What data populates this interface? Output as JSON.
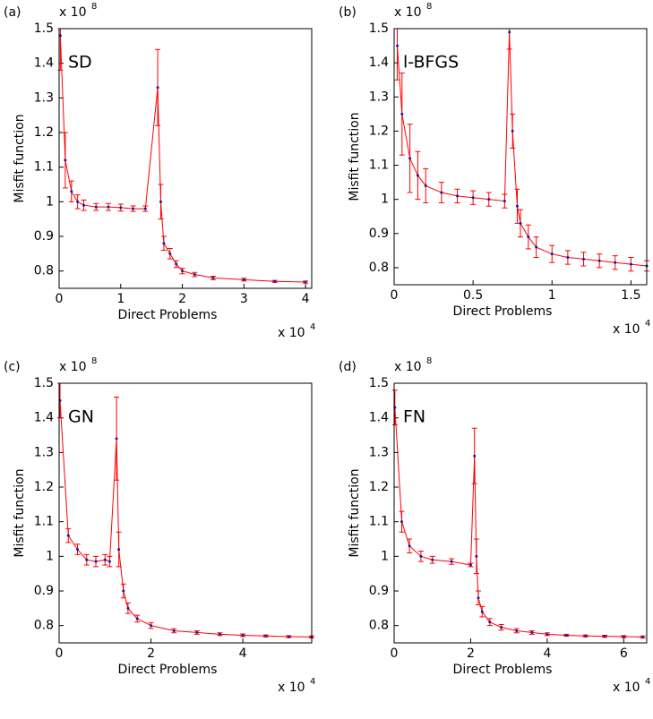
{
  "chart_data": [
    {
      "type": "line",
      "panel": "(a)",
      "label": "SD",
      "xlabel": "Direct Problems",
      "ylabel": "Misfit function",
      "y_multiplier": "x 10",
      "y_exponent": "8",
      "x_multiplier": "x 10",
      "x_exponent": "4",
      "xlim": [
        0,
        4.1
      ],
      "xticks": [
        0,
        1,
        2,
        3,
        4
      ],
      "ylim": [
        0.75,
        1.5
      ],
      "yticks": [
        0.8,
        0.9,
        1,
        1.1,
        1.2,
        1.3,
        1.4,
        1.5
      ],
      "series": [
        {
          "color": "#ff0000",
          "marker_color": "#1a1aa6",
          "x": [
            0.02,
            0.1,
            0.2,
            0.3,
            0.4,
            0.6,
            0.8,
            1.0,
            1.2,
            1.4,
            1.6,
            1.65,
            1.7,
            1.8,
            1.9,
            2.0,
            2.2,
            2.5,
            3.0,
            3.5,
            4.0
          ],
          "values": [
            1.48,
            1.12,
            1.03,
            1.0,
            0.99,
            0.985,
            0.985,
            0.983,
            0.98,
            0.98,
            1.33,
            1.0,
            0.88,
            0.85,
            0.82,
            0.8,
            0.79,
            0.78,
            0.775,
            0.77,
            0.768
          ],
          "errors": [
            0.1,
            0.08,
            0.03,
            0.02,
            0.015,
            0.01,
            0.01,
            0.01,
            0.008,
            0.008,
            0.11,
            0.05,
            0.02,
            0.015,
            0.01,
            0.008,
            0.006,
            0.005,
            0.004,
            0.003,
            0.003
          ]
        }
      ]
    },
    {
      "type": "line",
      "panel": "(b)",
      "label": "l-BFGS",
      "xlabel": "Direct Problems",
      "ylabel": "Misfit function",
      "y_multiplier": "x 10",
      "y_exponent": "8",
      "x_multiplier": "x 10",
      "x_exponent": "4",
      "xlim": [
        0,
        1.6
      ],
      "xticks": [
        0,
        0.5,
        1,
        1.5
      ],
      "ylim": [
        0.75,
        1.5
      ],
      "yticks": [
        0.8,
        0.9,
        1,
        1.1,
        1.2,
        1.3,
        1.4,
        1.5
      ],
      "series": [
        {
          "color": "#ff0000",
          "marker_color": "#1a1aa6",
          "x": [
            0.02,
            0.05,
            0.1,
            0.15,
            0.2,
            0.3,
            0.4,
            0.5,
            0.6,
            0.7,
            0.73,
            0.75,
            0.78,
            0.8,
            0.85,
            0.9,
            1.0,
            1.1,
            1.2,
            1.3,
            1.4,
            1.5,
            1.6
          ],
          "values": [
            1.45,
            1.25,
            1.12,
            1.07,
            1.04,
            1.02,
            1.01,
            1.005,
            1.0,
            0.995,
            1.49,
            1.2,
            0.98,
            0.93,
            0.89,
            0.86,
            0.84,
            0.83,
            0.825,
            0.82,
            0.815,
            0.81,
            0.805
          ],
          "errors": [
            0.1,
            0.12,
            0.1,
            0.07,
            0.05,
            0.03,
            0.02,
            0.02,
            0.02,
            0.02,
            0.05,
            0.05,
            0.05,
            0.04,
            0.035,
            0.03,
            0.025,
            0.02,
            0.02,
            0.02,
            0.02,
            0.02,
            0.015
          ]
        }
      ]
    },
    {
      "type": "line",
      "panel": "(c)",
      "label": "GN",
      "xlabel": "Direct Problems",
      "ylabel": "Misfit function",
      "y_multiplier": "x 10",
      "y_exponent": "8",
      "x_multiplier": "x 10",
      "x_exponent": "4",
      "xlim": [
        0,
        5.5
      ],
      "xticks": [
        0,
        2,
        4
      ],
      "ylim": [
        0.75,
        1.5
      ],
      "yticks": [
        0.8,
        0.9,
        1,
        1.1,
        1.2,
        1.3,
        1.4,
        1.5
      ],
      "series": [
        {
          "color": "#ff0000",
          "marker_color": "#1a1aa6",
          "x": [
            0.02,
            0.2,
            0.4,
            0.6,
            0.8,
            1.0,
            1.1,
            1.25,
            1.3,
            1.4,
            1.5,
            1.7,
            2.0,
            2.5,
            3,
            3.5,
            4,
            4.5,
            5,
            5.5
          ],
          "values": [
            1.45,
            1.06,
            1.02,
            0.99,
            0.985,
            0.99,
            0.985,
            1.34,
            1.02,
            0.9,
            0.85,
            0.82,
            0.8,
            0.785,
            0.78,
            0.775,
            0.772,
            0.77,
            0.768,
            0.767
          ],
          "errors": [
            0.05,
            0.02,
            0.015,
            0.015,
            0.015,
            0.015,
            0.015,
            0.12,
            0.05,
            0.02,
            0.015,
            0.01,
            0.008,
            0.006,
            0.005,
            0.004,
            0.004,
            0.003,
            0.003,
            0.003
          ]
        }
      ]
    },
    {
      "type": "line",
      "panel": "(d)",
      "label": "FN",
      "xlabel": "Direct Problems",
      "ylabel": "Misfit function",
      "y_multiplier": "x 10",
      "y_exponent": "8",
      "x_multiplier": "x 10",
      "x_exponent": "4",
      "xlim": [
        0,
        6.6
      ],
      "xticks": [
        0,
        2,
        4,
        6
      ],
      "ylim": [
        0.75,
        1.5
      ],
      "yticks": [
        0.8,
        0.9,
        1,
        1.1,
        1.2,
        1.3,
        1.4,
        1.5
      ],
      "series": [
        {
          "color": "#ff0000",
          "marker_color": "#1a1aa6",
          "x": [
            0.02,
            0.2,
            0.4,
            0.7,
            1.0,
            1.5,
            2.0,
            2.1,
            2.15,
            2.2,
            2.3,
            2.5,
            2.8,
            3.2,
            3.6,
            4,
            4.5,
            5,
            5.5,
            6,
            6.5
          ],
          "values": [
            1.43,
            1.1,
            1.03,
            1.0,
            0.99,
            0.985,
            0.975,
            1.29,
            1.0,
            0.88,
            0.84,
            0.81,
            0.795,
            0.785,
            0.78,
            0.775,
            0.772,
            0.77,
            0.769,
            0.768,
            0.767
          ],
          "errors": [
            0.05,
            0.03,
            0.02,
            0.015,
            0.01,
            0.008,
            0.005,
            0.08,
            0.05,
            0.02,
            0.015,
            0.01,
            0.008,
            0.006,
            0.005,
            0.004,
            0.003,
            0.003,
            0.003,
            0.003,
            0.003
          ]
        }
      ]
    }
  ]
}
